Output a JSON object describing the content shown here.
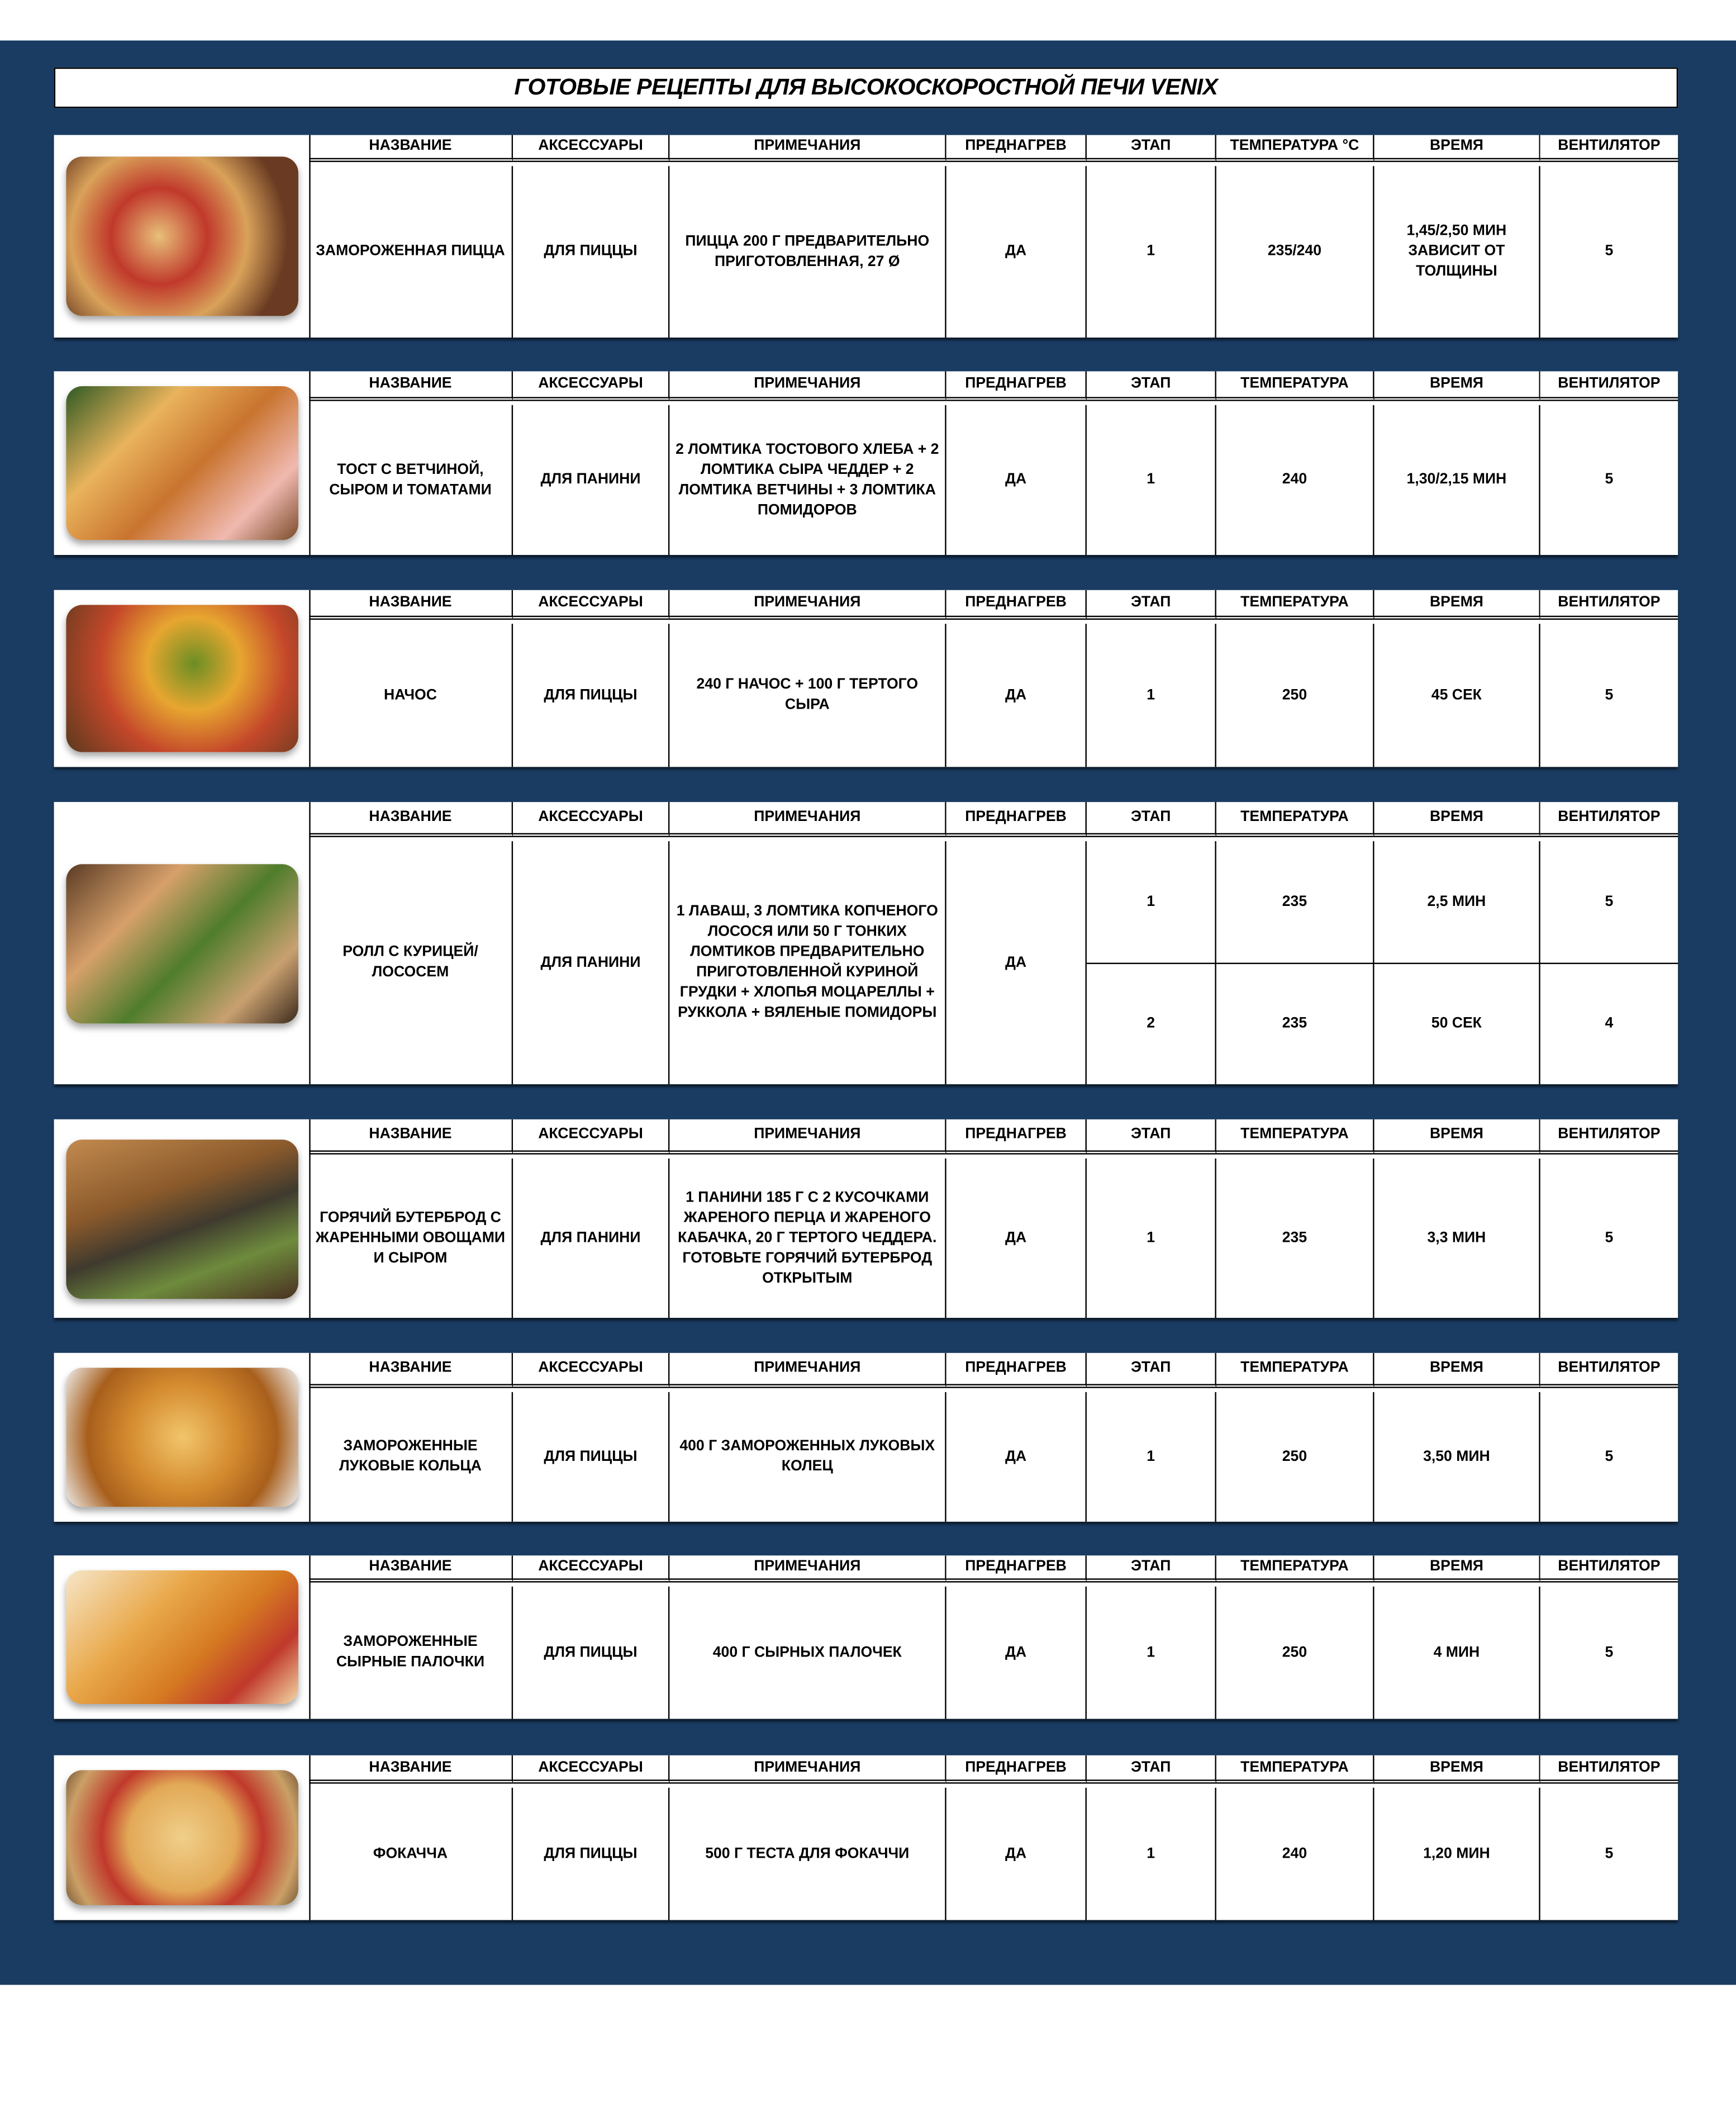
{
  "title": "ГОТОВЫЕ РЕЦЕПТЫ ДЛЯ ВЫСОКОСКОРОСТНОЙ ПЕЧИ VENIX",
  "colors": {
    "background_band": "#1a3c63",
    "table": "#ffffff",
    "text": "#000000"
  },
  "recipes": [
    {
      "image": "frozen-pizza-photo",
      "headers": [
        "НАЗВАНИЕ",
        "АКСЕССУАРЫ",
        "ПРИМЕЧАНИЯ",
        "ПРЕДНАГРЕВ",
        "ЭТАП",
        "ТЕМПЕРАТУРА °C",
        "ВРЕМЯ",
        "ВЕНТИЛЯТОР"
      ],
      "name": "ЗАМОРОЖЕННАЯ ПИЦЦА",
      "accessory": "ДЛЯ ПИЦЦЫ",
      "notes": "ПИЦЦА 200 Г ПРЕДВАРИТЕЛЬНО ПРИГОТОВЛЕННАЯ, 27 Ø",
      "preheat": "ДА",
      "stages": [
        {
          "stage": "1",
          "temperature": "235/240",
          "time": "1,45/2,50 МИН ЗАВИСИТ ОТ ТОЛЩИНЫ",
          "fan": "5"
        }
      ]
    },
    {
      "image": "ham-cheese-toast-photo",
      "headers": [
        "НАЗВАНИЕ",
        "АКСЕССУАРЫ",
        "ПРИМЕЧАНИЯ",
        "ПРЕДНАГРЕВ",
        "ЭТАП",
        "ТЕМПЕРАТУРА",
        "ВРЕМЯ",
        "ВЕНТИЛЯТОР"
      ],
      "name": "ТОСТ С ВЕТЧИНОЙ, СЫРОМ И ТОМАТАМИ",
      "accessory": "ДЛЯ ПАНИНИ",
      "notes": "2 ЛОМТИКА ТОСТОВОГО ХЛЕБА + 2 ЛОМТИКА СЫРА ЧЕДДЕР + 2 ЛОМТИКА ВЕТЧИНЫ + 3 ЛОМТИКА ПОМИДОРОВ",
      "preheat": "ДА",
      "stages": [
        {
          "stage": "1",
          "temperature": "240",
          "time": "1,30/2,15 МИН",
          "fan": "5"
        }
      ]
    },
    {
      "image": "nachos-photo",
      "headers": [
        "НАЗВАНИЕ",
        "АКСЕССУАРЫ",
        "ПРИМЕЧАНИЯ",
        "ПРЕДНАГРЕВ",
        "ЭТАП",
        "ТЕМПЕРАТУРА",
        "ВРЕМЯ",
        "ВЕНТИЛЯТОР"
      ],
      "name": "НАЧОС",
      "accessory": "ДЛЯ ПИЦЦЫ",
      "notes": "240 Г НАЧОС + 100 Г ТЕРТОГО СЫРА",
      "preheat": "ДА",
      "stages": [
        {
          "stage": "1",
          "temperature": "250",
          "time": "45 СЕК",
          "fan": "5"
        }
      ]
    },
    {
      "image": "chicken-salmon-roll-photo",
      "headers": [
        "НАЗВАНИЕ",
        "АКСЕССУАРЫ",
        "ПРИМЕЧАНИЯ",
        "ПРЕДНАГРЕВ",
        "ЭТАП",
        "ТЕМПЕРАТУРА",
        "ВРЕМЯ",
        "ВЕНТИЛЯТОР"
      ],
      "name": "РОЛЛ С КУРИЦЕЙ/ ЛОСОСЕМ",
      "accessory": "ДЛЯ ПАНИНИ",
      "notes": "1 ЛАВАШ, 3 ЛОМТИКА КОПЧЕНОГО ЛОСОСЯ ИЛИ 50 Г ТОНКИХ ЛОМТИКОВ ПРЕДВАРИТЕЛЬНО ПРИГОТОВЛЕННОЙ КУРИНОЙ ГРУДКИ + ХЛОПЬЯ МОЦАРЕЛЛЫ + РУККОЛА + ВЯЛЕНЫЕ ПОМИДОРЫ",
      "preheat": "ДА",
      "stages": [
        {
          "stage": "1",
          "temperature": "235",
          "time": "2,5 МИН",
          "fan": "5"
        },
        {
          "stage": "2",
          "temperature": "235",
          "time": "50 СЕК",
          "fan": "4"
        }
      ]
    },
    {
      "image": "hot-vegetable-sandwich-photo",
      "headers": [
        "НАЗВАНИЕ",
        "АКСЕССУАРЫ",
        "ПРИМЕЧАНИЯ",
        "ПРЕДНАГРЕВ",
        "ЭТАП",
        "ТЕМПЕРАТУРА",
        "ВРЕМЯ",
        "ВЕНТИЛЯТОР"
      ],
      "name": "ГОРЯЧИЙ БУТЕРБРОД С ЖАРЕННЫМИ ОВОЩАМИ И СЫРОМ",
      "accessory": "ДЛЯ ПАНИНИ",
      "notes": "1 ПАНИНИ 185 Г С 2 КУСОЧКАМИ ЖАРЕНОГО ПЕРЦА И ЖАРЕНОГО КАБАЧКА, 20 Г ТЕРТОГО ЧЕДДЕРА. ГОТОВЬТЕ ГОРЯЧИЙ БУТЕРБРОД ОТКРЫТЫМ",
      "preheat": "ДА",
      "stages": [
        {
          "stage": "1",
          "temperature": "235",
          "time": "3,3 МИН",
          "fan": "5"
        }
      ]
    },
    {
      "image": "onion-rings-photo",
      "headers": [
        "НАЗВАНИЕ",
        "АКСЕССУАРЫ",
        "ПРИМЕЧАНИЯ",
        "ПРЕДНАГРЕВ",
        "ЭТАП",
        "ТЕМПЕРАТУРА",
        "ВРЕМЯ",
        "ВЕНТИЛЯТОР"
      ],
      "name": "ЗАМОРОЖЕННЫЕ ЛУКОВЫЕ КОЛЬЦА",
      "accessory": "ДЛЯ ПИЦЦЫ",
      "notes": "400 Г ЗАМОРОЖЕННЫХ ЛУКОВЫХ КОЛЕЦ",
      "preheat": "ДА",
      "stages": [
        {
          "stage": "1",
          "temperature": "250",
          "time": "3,50 МИН",
          "fan": "5"
        }
      ]
    },
    {
      "image": "cheese-sticks-photo",
      "headers": [
        "НАЗВАНИЕ",
        "АКСЕССУАРЫ",
        "ПРИМЕЧАНИЯ",
        "ПРЕДНАГРЕВ",
        "ЭТАП",
        "ТЕМПЕРАТУРА",
        "ВРЕМЯ",
        "ВЕНТИЛЯТОР"
      ],
      "name": "ЗАМОРОЖЕННЫЕ СЫРНЫЕ ПАЛОЧКИ",
      "accessory": "ДЛЯ ПИЦЦЫ",
      "notes": "400 Г СЫРНЫХ ПАЛОЧЕК",
      "preheat": "ДА",
      "stages": [
        {
          "stage": "1",
          "temperature": "250",
          "time": "4 МИН",
          "fan": "5"
        }
      ]
    },
    {
      "image": "focaccia-photo",
      "headers": [
        "НАЗВАНИЕ",
        "АКСЕССУАРЫ",
        "ПРИМЕЧАНИЯ",
        "ПРЕДНАГРЕВ",
        "ЭТАП",
        "ТЕМПЕРАТУРА",
        "ВРЕМЯ",
        "ВЕНТИЛЯТОР"
      ],
      "name": "ФОКАЧЧА",
      "accessory": "ДЛЯ ПИЦЦЫ",
      "notes": "500 Г ТЕСТА ДЛЯ ФОКАЧЧИ",
      "preheat": "ДА",
      "stages": [
        {
          "stage": "1",
          "temperature": "240",
          "time": "1,20 МИН",
          "fan": "5"
        }
      ]
    }
  ]
}
